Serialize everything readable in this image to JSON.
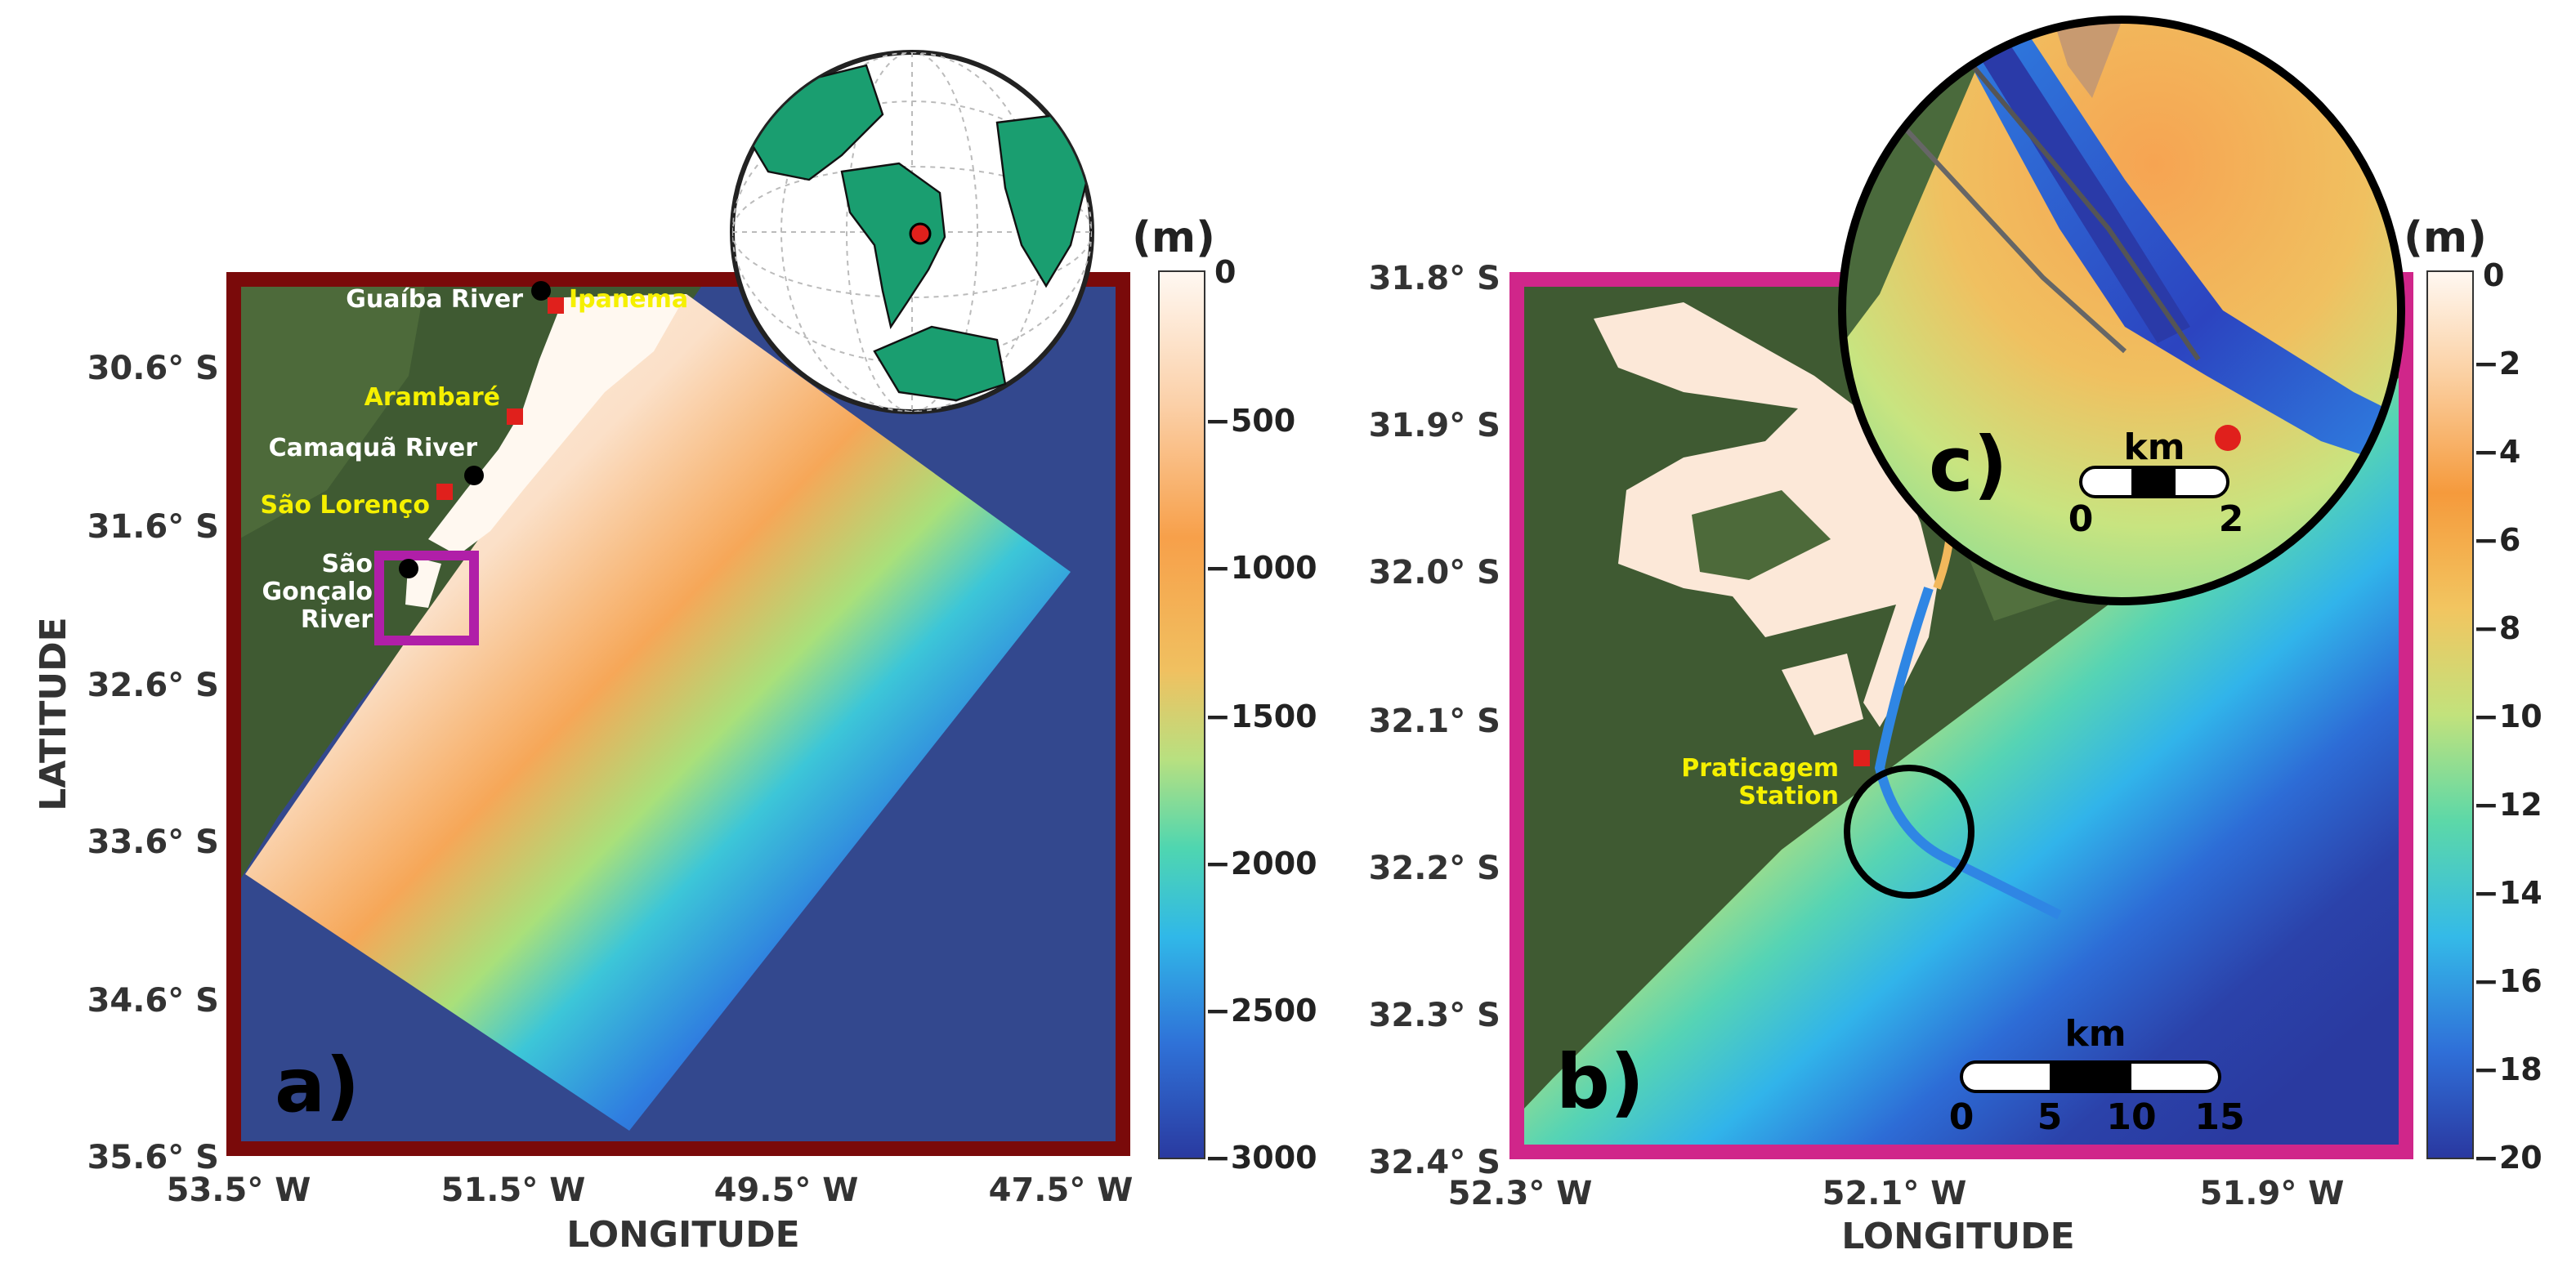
{
  "panel_a": {
    "label": "a)",
    "y_ticks": [
      "30.6° S",
      "31.6° S",
      "32.6° S",
      "33.6° S",
      "34.6° S",
      "35.6° S"
    ],
    "x_ticks": [
      "53.5° W",
      "51.5° W",
      "49.5° W",
      "47.5° W"
    ],
    "ylabel": "LATITUDE",
    "xlabel": "LONGITUDE",
    "places": {
      "guaiba_river": "Guaíba River",
      "ipanema": "Ipanema",
      "arambare": "Arambaré",
      "camaqua_river": "Camaquã River",
      "sao_lourenco": "São Lorenço",
      "sao_goncalo_1": "São",
      "sao_goncalo_2": "Gonçalo",
      "sao_goncalo_3": "River"
    },
    "colorbar": {
      "unit": "(m)",
      "ticks": [
        "0",
        "−500",
        "−1000",
        "−1500",
        "−2000",
        "−2500",
        "−3000"
      ]
    },
    "frame_color": "#7a0a0a",
    "inset_box_color": "#b01fa8"
  },
  "panel_b": {
    "label": "b)",
    "y_ticks": [
      "31.8° S",
      "31.9° S",
      "32.0° S",
      "32.1° S",
      "32.2° S",
      "32.3° S",
      "32.4° S"
    ],
    "x_ticks": [
      "52.3° W",
      "52.1° W",
      "51.9° W"
    ],
    "xlabel": "LONGITUDE",
    "station_1": "Praticagem",
    "station_2": "Station",
    "scalebar": {
      "unit": "km",
      "ticks": [
        "0",
        "5",
        "10",
        "15"
      ]
    },
    "colorbar": {
      "unit": "(m)",
      "ticks": [
        "0",
        "−2",
        "−4",
        "−6",
        "−8",
        "−10",
        "−12",
        "−14",
        "−16",
        "−18",
        "−20"
      ]
    },
    "frame_color": "#d0268a"
  },
  "panel_c": {
    "label": "c)",
    "scalebar": {
      "unit": "km",
      "ticks": [
        "0",
        "2"
      ]
    }
  },
  "colors": {
    "land": "#3f5a32",
    "deep": "#2d3e9a",
    "marker_red": "#e0201c",
    "marker_black": "#000000",
    "yellow_label": "#f5f000"
  }
}
